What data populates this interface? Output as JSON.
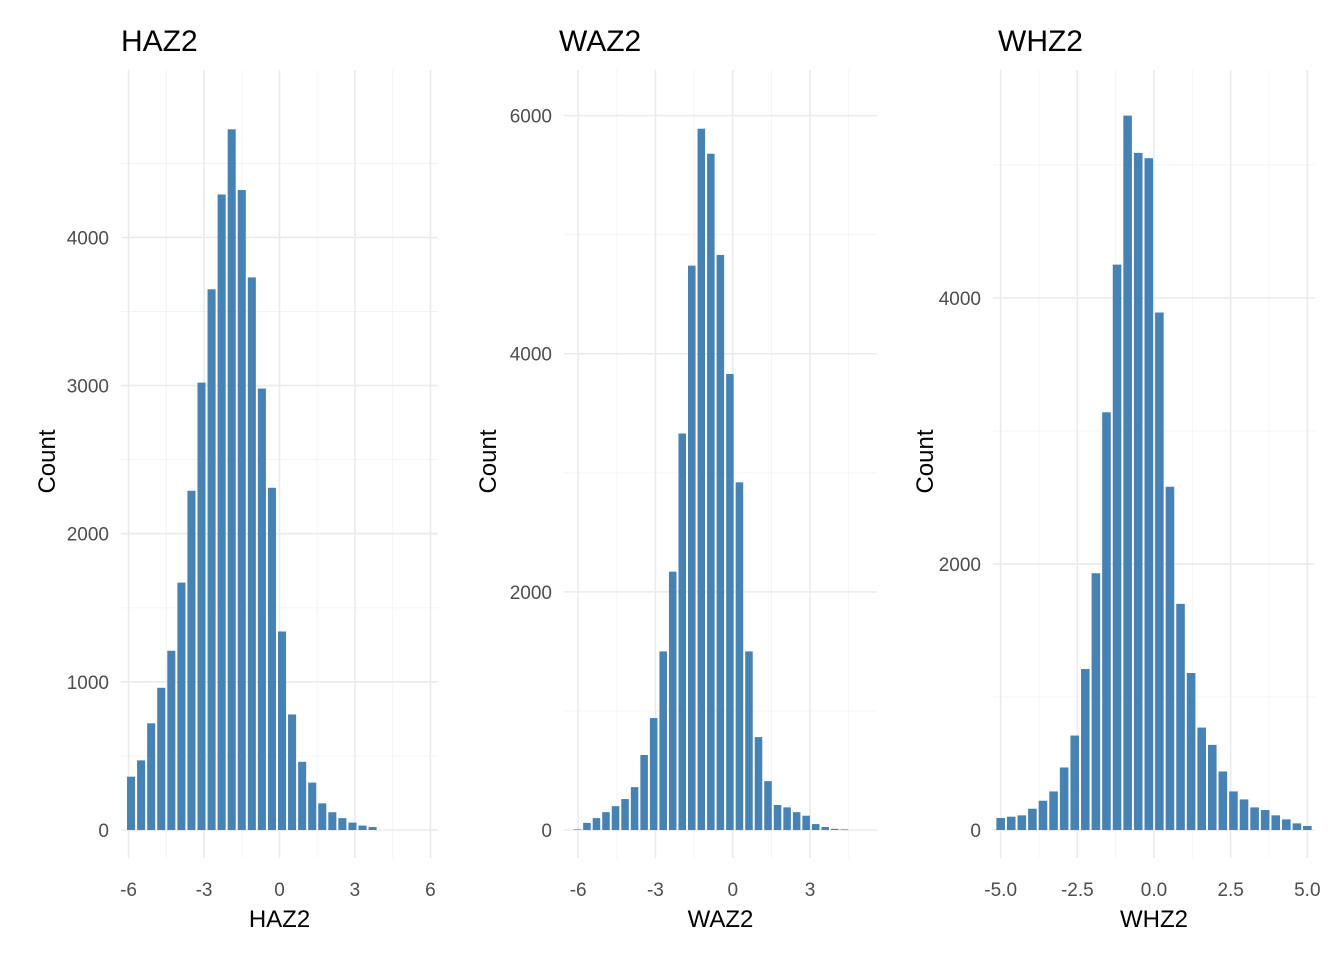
{
  "figure": {
    "background": "#ffffff",
    "bar_color": "#4682b4"
  },
  "chart_data": [
    {
      "type": "bar",
      "title": "HAZ2",
      "xlabel": "HAZ2",
      "ylabel": "Count",
      "xticks": [
        -6,
        -3,
        0,
        3,
        6
      ],
      "xtick_labels": [
        "-6",
        "-3",
        "0",
        "3",
        "6"
      ],
      "yticks": [
        0,
        1000,
        2000,
        3000,
        4000
      ],
      "ytick_labels": [
        "0",
        "1000",
        "2000",
        "3000",
        "4000"
      ],
      "xlim": [
        -6.3,
        6.3
      ],
      "ylim": [
        0,
        4975
      ],
      "grid": true,
      "legend": "none",
      "binwidth": 0.4,
      "bin_centers": [
        -5.9,
        -5.5,
        -5.1,
        -4.7,
        -4.3,
        -3.9,
        -3.5,
        -3.1,
        -2.7,
        -2.3,
        -1.9,
        -1.5,
        -1.1,
        -0.7,
        -0.3,
        0.1,
        0.5,
        0.9,
        1.3,
        1.7,
        2.1,
        2.5,
        2.9,
        3.3,
        3.7,
        4.1,
        4.5,
        4.9,
        5.3,
        5.7,
        6.1
      ],
      "values": [
        360,
        470,
        720,
        960,
        1210,
        1670,
        2290,
        3020,
        3650,
        4290,
        4730,
        4320,
        3730,
        2980,
        2310,
        1340,
        780,
        460,
        320,
        180,
        120,
        80,
        50,
        30,
        20,
        0,
        0,
        0,
        0,
        0,
        0
      ]
    },
    {
      "type": "bar",
      "title": "WAZ2",
      "xlabel": "WAZ2",
      "ylabel": "Count",
      "xticks": [
        -6,
        -3,
        0,
        3
      ],
      "xtick_labels": [
        "-6",
        "-3",
        "0",
        "3"
      ],
      "yticks": [
        0,
        2000,
        4000,
        6000
      ],
      "ytick_labels": [
        "0",
        "2000",
        "4000",
        "6000"
      ],
      "xlim": [
        -6.55,
        5.6
      ],
      "ylim": [
        0,
        6190
      ],
      "grid": true,
      "legend": "none",
      "binwidth": 0.37,
      "bin_centers": [
        -6.03,
        -5.66,
        -5.29,
        -4.92,
        -4.55,
        -4.18,
        -3.81,
        -3.44,
        -3.07,
        -2.7,
        -2.33,
        -1.96,
        -1.59,
        -1.22,
        -0.85,
        -0.48,
        -0.11,
        0.26,
        0.63,
        1.0,
        1.37,
        1.74,
        2.11,
        2.48,
        2.85,
        3.22,
        3.59,
        3.96,
        4.33
      ],
      "values": [
        5,
        60,
        100,
        150,
        200,
        260,
        360,
        630,
        940,
        1500,
        2170,
        3330,
        4740,
        5890,
        5680,
        4830,
        3830,
        2920,
        1500,
        780,
        410,
        210,
        190,
        150,
        120,
        50,
        25,
        10,
        5
      ]
    },
    {
      "type": "bar",
      "title": "WHZ2",
      "xlabel": "WHZ2",
      "ylabel": "Count",
      "xticks": [
        -5.0,
        -2.5,
        0.0,
        2.5,
        5.0
      ],
      "xtick_labels": [
        "-5.0",
        "-2.5",
        "0.0",
        "2.5",
        "5.0"
      ],
      "yticks": [
        0,
        2000,
        4000
      ],
      "ytick_labels": [
        "0",
        "2000",
        "4000"
      ],
      "xlim": [
        -5.25,
        5.25
      ],
      "ylim": [
        0,
        5540
      ],
      "grid": true,
      "legend": "none",
      "binwidth": 0.345,
      "bin_centers": [
        -5.0,
        -4.655,
        -4.31,
        -3.965,
        -3.62,
        -3.275,
        -2.93,
        -2.585,
        -2.24,
        -1.895,
        -1.55,
        -1.205,
        -0.86,
        -0.515,
        -0.17,
        0.175,
        0.52,
        0.865,
        1.21,
        1.555,
        1.9,
        2.245,
        2.59,
        2.935,
        3.28,
        3.625,
        3.97,
        4.315,
        4.66,
        5.0
      ],
      "values": [
        90,
        100,
        110,
        160,
        220,
        290,
        470,
        710,
        1210,
        1930,
        3140,
        4250,
        5370,
        5090,
        5050,
        3890,
        2580,
        1700,
        1180,
        770,
        640,
        440,
        290,
        230,
        170,
        150,
        110,
        80,
        50,
        30
      ]
    }
  ]
}
